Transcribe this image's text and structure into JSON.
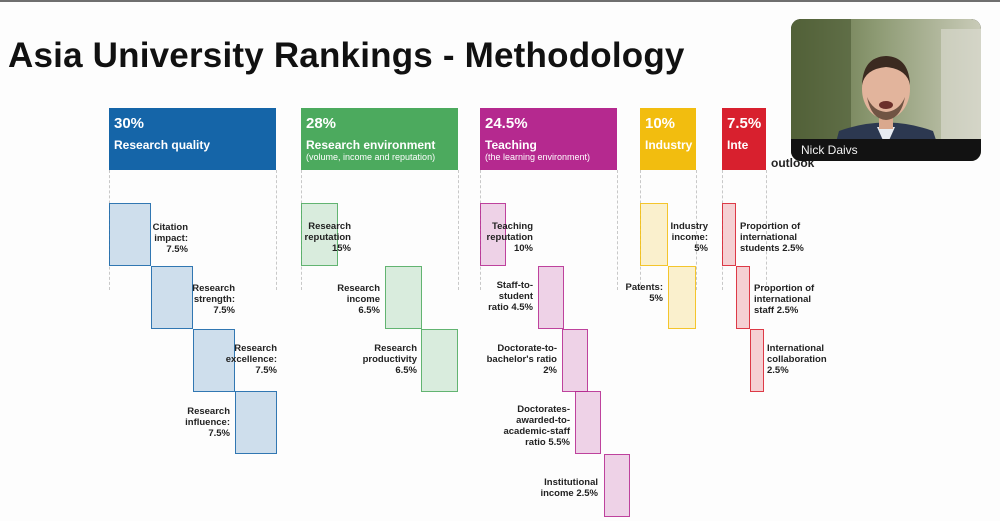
{
  "slide": {
    "title": "Asia University Rankings - Methodology"
  },
  "pillars": [
    {
      "id": "research-quality",
      "percent": "30%",
      "name": "Research quality",
      "subtitle": "",
      "color": "#1565a8",
      "metrics": [
        {
          "lines": [
            "Citation",
            "impact:",
            "7.5%"
          ]
        },
        {
          "lines": [
            "Research",
            "strength:",
            "7.5%"
          ]
        },
        {
          "lines": [
            "Research",
            "excellence:",
            "7.5%"
          ]
        },
        {
          "lines": [
            "Research",
            "influence:",
            "7.5%"
          ]
        }
      ]
    },
    {
      "id": "research-environment",
      "percent": "28%",
      "name": "Research environment",
      "subtitle": "(volume, income and reputation)",
      "color": "#4caa5e",
      "metrics": [
        {
          "lines": [
            "Research",
            "reputation",
            "15%"
          ]
        },
        {
          "lines": [
            "Research",
            "income",
            "6.5%"
          ]
        },
        {
          "lines": [
            "Research",
            "productivity",
            "6.5%"
          ]
        }
      ]
    },
    {
      "id": "teaching",
      "percent": "24.5%",
      "name": "Teaching",
      "subtitle": "(the learning environment)",
      "color": "#b5298f",
      "metrics": [
        {
          "lines": [
            "Teaching",
            "reputation",
            "10%"
          ]
        },
        {
          "lines": [
            "Staff-to-",
            "student",
            "ratio 4.5%"
          ]
        },
        {
          "lines": [
            "Doctorate-to-",
            "bachelor's ratio",
            "2%"
          ]
        },
        {
          "lines": [
            "Doctorates-",
            "awarded-to-",
            "academic-staff",
            "ratio 5.5%"
          ]
        },
        {
          "lines": [
            "Institutional",
            "income 2.5%"
          ]
        }
      ]
    },
    {
      "id": "industry",
      "percent": "10%",
      "name": "Industry",
      "subtitle": "",
      "color": "#f2bd0f",
      "metrics": [
        {
          "lines": [
            "Industry",
            "income:",
            "5%"
          ]
        },
        {
          "lines": [
            "Patents:",
            "5%"
          ]
        }
      ]
    },
    {
      "id": "international-outlook",
      "percent": "7.5%",
      "name": "International",
      "name_visible": "Inte",
      "subtitle": "outlook",
      "color": "#d8202e",
      "metrics": [
        {
          "lines": [
            "Proportion of",
            "international",
            "students 2.5%"
          ]
        },
        {
          "lines": [
            "Proportion of",
            "international",
            "staff 2.5%"
          ]
        },
        {
          "lines": [
            "International",
            "collaboration",
            "2.5%"
          ]
        }
      ]
    }
  ],
  "video_call": {
    "participant_name": "Nick Daivs"
  }
}
